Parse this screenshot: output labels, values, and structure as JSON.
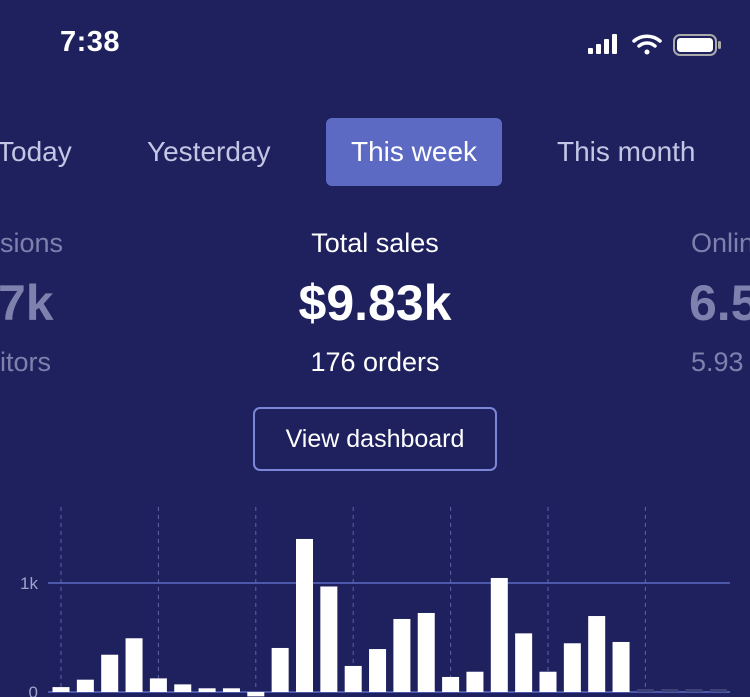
{
  "status_bar": {
    "time": "7:38",
    "icons": [
      "signal-icon",
      "wifi-icon",
      "battery-icon"
    ]
  },
  "tabs": [
    {
      "label": "Today",
      "active": false
    },
    {
      "label": "Yesterday",
      "active": false
    },
    {
      "label": "This week",
      "active": true
    },
    {
      "label": "This month",
      "active": false
    }
  ],
  "stats": {
    "left": {
      "label": "sions",
      "value": "7k",
      "sub": "itors"
    },
    "center": {
      "label": "Total sales",
      "value": "$9.83k",
      "sub": "176 orders"
    },
    "right": {
      "label": "Onlin",
      "value": "6.5",
      "sub": "5.93"
    }
  },
  "view_dashboard_label": "View dashboard",
  "colors": {
    "background": "#1f215e",
    "accent": "#5c6ac4",
    "bar": "#ffffff",
    "placeholder_bar": "#3d4178"
  },
  "chart_data": {
    "type": "bar",
    "y_ticks": [
      {
        "value": 0,
        "label": "0"
      },
      {
        "value": 1000,
        "label": "1k"
      }
    ],
    "ylim": [
      -50,
      1600
    ],
    "values": [
      45,
      113,
      342,
      493,
      125,
      70,
      34,
      34,
      -40,
      404,
      1404,
      968,
      239,
      394,
      670,
      725,
      138,
      186,
      1046,
      538,
      186,
      447,
      697,
      459
    ],
    "future_slots": 4,
    "group_size": 4,
    "grid": "vertical dashed every 4 bars"
  }
}
